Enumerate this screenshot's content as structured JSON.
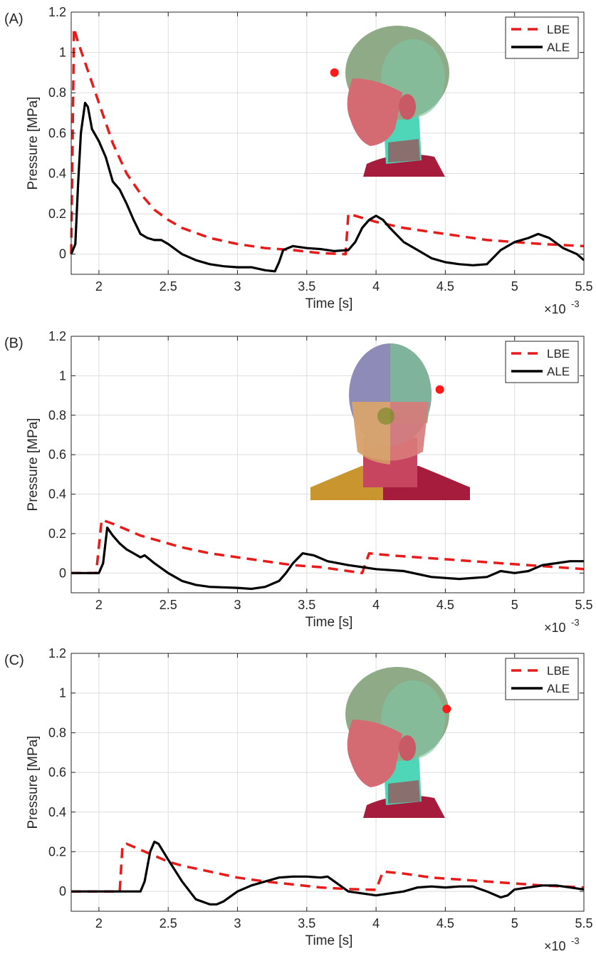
{
  "chart_data": [
    {
      "panel_label": "(A)",
      "type": "line",
      "xlabel": "Time [s]",
      "ylabel": "Pressure [MPa]",
      "x_multiplier": "×10",
      "x_multiplier_exp": "-3",
      "xlim": [
        1.8,
        5.5
      ],
      "ylim": [
        -0.1,
        1.2
      ],
      "xticks": [
        "2",
        "2.5",
        "3",
        "3.5",
        "4",
        "4.5",
        "5",
        "5.5"
      ],
      "yticks": [
        "0",
        "0.2",
        "0.4",
        "0.6",
        "0.8",
        "1",
        "1.2"
      ],
      "grid": true,
      "legend_position": "top-right",
      "head_view": "side",
      "series": [
        {
          "name": "LBE",
          "style": "dashed",
          "color": "#e81a1a",
          "points": [
            [
              1.8,
              0.0
            ],
            [
              1.82,
              1.12
            ],
            [
              1.85,
              1.05
            ],
            [
              1.9,
              0.95
            ],
            [
              2.0,
              0.75
            ],
            [
              2.1,
              0.55
            ],
            [
              2.2,
              0.4
            ],
            [
              2.3,
              0.3
            ],
            [
              2.4,
              0.22
            ],
            [
              2.5,
              0.17
            ],
            [
              2.6,
              0.13
            ],
            [
              2.8,
              0.08
            ],
            [
              3.0,
              0.05
            ],
            [
              3.2,
              0.03
            ],
            [
              3.4,
              0.02
            ],
            [
              3.6,
              0.005
            ],
            [
              3.78,
              0.0
            ],
            [
              3.8,
              0.2
            ],
            [
              4.0,
              0.16
            ],
            [
              4.2,
              0.13
            ],
            [
              4.4,
              0.11
            ],
            [
              4.6,
              0.09
            ],
            [
              4.8,
              0.07
            ],
            [
              5.0,
              0.06
            ],
            [
              5.2,
              0.05
            ],
            [
              5.5,
              0.04
            ]
          ]
        },
        {
          "name": "ALE",
          "style": "solid",
          "color": "#000000",
          "points": [
            [
              1.8,
              0.0
            ],
            [
              1.83,
              0.05
            ],
            [
              1.85,
              0.35
            ],
            [
              1.87,
              0.6
            ],
            [
              1.9,
              0.75
            ],
            [
              1.92,
              0.73
            ],
            [
              1.95,
              0.62
            ],
            [
              2.0,
              0.56
            ],
            [
              2.05,
              0.48
            ],
            [
              2.1,
              0.36
            ],
            [
              2.15,
              0.32
            ],
            [
              2.2,
              0.25
            ],
            [
              2.25,
              0.17
            ],
            [
              2.3,
              0.1
            ],
            [
              2.35,
              0.08
            ],
            [
              2.4,
              0.07
            ],
            [
              2.45,
              0.07
            ],
            [
              2.5,
              0.05
            ],
            [
              2.6,
              0.0
            ],
            [
              2.7,
              -0.03
            ],
            [
              2.8,
              -0.05
            ],
            [
              2.9,
              -0.06
            ],
            [
              3.0,
              -0.065
            ],
            [
              3.1,
              -0.065
            ],
            [
              3.2,
              -0.08
            ],
            [
              3.27,
              -0.085
            ],
            [
              3.3,
              -0.04
            ],
            [
              3.33,
              0.02
            ],
            [
              3.4,
              0.04
            ],
            [
              3.5,
              0.03
            ],
            [
              3.6,
              0.025
            ],
            [
              3.7,
              0.015
            ],
            [
              3.8,
              0.02
            ],
            [
              3.85,
              0.06
            ],
            [
              3.9,
              0.13
            ],
            [
              3.95,
              0.17
            ],
            [
              4.0,
              0.19
            ],
            [
              4.05,
              0.17
            ],
            [
              4.1,
              0.13
            ],
            [
              4.2,
              0.06
            ],
            [
              4.3,
              0.02
            ],
            [
              4.4,
              -0.02
            ],
            [
              4.5,
              -0.04
            ],
            [
              4.6,
              -0.05
            ],
            [
              4.7,
              -0.055
            ],
            [
              4.8,
              -0.05
            ],
            [
              4.9,
              0.02
            ],
            [
              5.0,
              0.06
            ],
            [
              5.1,
              0.08
            ],
            [
              5.17,
              0.1
            ],
            [
              5.25,
              0.08
            ],
            [
              5.35,
              0.03
            ],
            [
              5.45,
              0.0
            ],
            [
              5.5,
              -0.03
            ]
          ]
        }
      ]
    },
    {
      "panel_label": "(B)",
      "type": "line",
      "xlabel": "Time [s]",
      "ylabel": "Pressure [MPa]",
      "x_multiplier": "×10",
      "x_multiplier_exp": "-3",
      "xlim": [
        1.8,
        5.5
      ],
      "ylim": [
        -0.1,
        1.2
      ],
      "xticks": [
        "2",
        "2.5",
        "3",
        "3.5",
        "4",
        "4.5",
        "5",
        "5.5"
      ],
      "yticks": [
        "0",
        "0.2",
        "0.4",
        "0.6",
        "0.8",
        "1",
        "1.2"
      ],
      "grid": true,
      "legend_position": "top-right",
      "head_view": "back",
      "series": [
        {
          "name": "LBE",
          "style": "dashed",
          "color": "#e81a1a",
          "points": [
            [
              1.8,
              0.0
            ],
            [
              1.98,
              0.0
            ],
            [
              2.02,
              0.27
            ],
            [
              2.1,
              0.25
            ],
            [
              2.2,
              0.22
            ],
            [
              2.3,
              0.19
            ],
            [
              2.4,
              0.17
            ],
            [
              2.5,
              0.15
            ],
            [
              2.6,
              0.13
            ],
            [
              2.8,
              0.1
            ],
            [
              3.0,
              0.08
            ],
            [
              3.2,
              0.06
            ],
            [
              3.4,
              0.04
            ],
            [
              3.6,
              0.03
            ],
            [
              3.8,
              0.01
            ],
            [
              3.9,
              0.0
            ],
            [
              3.95,
              0.1
            ],
            [
              4.1,
              0.09
            ],
            [
              4.3,
              0.08
            ],
            [
              4.5,
              0.07
            ],
            [
              4.7,
              0.06
            ],
            [
              4.9,
              0.05
            ],
            [
              5.1,
              0.04
            ],
            [
              5.3,
              0.03
            ],
            [
              5.5,
              0.02
            ]
          ]
        },
        {
          "name": "ALE",
          "style": "solid",
          "color": "#000000",
          "points": [
            [
              1.8,
              0.0
            ],
            [
              2.0,
              0.0
            ],
            [
              2.03,
              0.05
            ],
            [
              2.06,
              0.23
            ],
            [
              2.1,
              0.19
            ],
            [
              2.15,
              0.15
            ],
            [
              2.2,
              0.12
            ],
            [
              2.25,
              0.1
            ],
            [
              2.3,
              0.08
            ],
            [
              2.33,
              0.09
            ],
            [
              2.4,
              0.05
            ],
            [
              2.5,
              0.0
            ],
            [
              2.6,
              -0.04
            ],
            [
              2.7,
              -0.06
            ],
            [
              2.8,
              -0.07
            ],
            [
              3.0,
              -0.075
            ],
            [
              3.1,
              -0.08
            ],
            [
              3.2,
              -0.07
            ],
            [
              3.3,
              -0.04
            ],
            [
              3.35,
              0.0
            ],
            [
              3.4,
              0.05
            ],
            [
              3.47,
              0.1
            ],
            [
              3.55,
              0.09
            ],
            [
              3.65,
              0.06
            ],
            [
              3.8,
              0.04
            ],
            [
              4.0,
              0.02
            ],
            [
              4.2,
              0.01
            ],
            [
              4.4,
              -0.02
            ],
            [
              4.6,
              -0.03
            ],
            [
              4.8,
              -0.02
            ],
            [
              4.9,
              0.01
            ],
            [
              5.0,
              0.0
            ],
            [
              5.1,
              0.01
            ],
            [
              5.2,
              0.04
            ],
            [
              5.3,
              0.05
            ],
            [
              5.4,
              0.06
            ],
            [
              5.5,
              0.06
            ]
          ]
        }
      ]
    },
    {
      "panel_label": "(C)",
      "type": "line",
      "xlabel": "Time [s]",
      "ylabel": "Pressure [MPa]",
      "x_multiplier": "×10",
      "x_multiplier_exp": "-3",
      "xlim": [
        1.8,
        5.5
      ],
      "ylim": [
        -0.1,
        1.2
      ],
      "xticks": [
        "2",
        "2.5",
        "3",
        "3.5",
        "4",
        "4.5",
        "5",
        "5.5"
      ],
      "yticks": [
        "0",
        "0.2",
        "0.4",
        "0.6",
        "0.8",
        "1",
        "1.2"
      ],
      "grid": true,
      "legend_position": "top-right",
      "head_view": "side",
      "series": [
        {
          "name": "LBE",
          "style": "dashed",
          "color": "#e81a1a",
          "points": [
            [
              1.8,
              0.0
            ],
            [
              2.15,
              0.0
            ],
            [
              2.17,
              0.23
            ],
            [
              2.2,
              0.24
            ],
            [
              2.3,
              0.21
            ],
            [
              2.4,
              0.18
            ],
            [
              2.5,
              0.15
            ],
            [
              2.6,
              0.13
            ],
            [
              2.8,
              0.1
            ],
            [
              3.0,
              0.07
            ],
            [
              3.2,
              0.05
            ],
            [
              3.4,
              0.035
            ],
            [
              3.6,
              0.02
            ],
            [
              3.8,
              0.012
            ],
            [
              4.0,
              0.008
            ],
            [
              4.05,
              0.1
            ],
            [
              4.2,
              0.09
            ],
            [
              4.4,
              0.07
            ],
            [
              4.6,
              0.06
            ],
            [
              4.8,
              0.05
            ],
            [
              5.0,
              0.04
            ],
            [
              5.2,
              0.03
            ],
            [
              5.5,
              0.02
            ]
          ]
        },
        {
          "name": "ALE",
          "style": "solid",
          "color": "#000000",
          "points": [
            [
              1.8,
              0.0
            ],
            [
              2.3,
              0.0
            ],
            [
              2.33,
              0.05
            ],
            [
              2.37,
              0.2
            ],
            [
              2.4,
              0.25
            ],
            [
              2.43,
              0.24
            ],
            [
              2.5,
              0.16
            ],
            [
              2.6,
              0.05
            ],
            [
              2.7,
              -0.04
            ],
            [
              2.8,
              -0.065
            ],
            [
              2.85,
              -0.065
            ],
            [
              2.9,
              -0.05
            ],
            [
              3.0,
              0.0
            ],
            [
              3.1,
              0.03
            ],
            [
              3.2,
              0.05
            ],
            [
              3.3,
              0.07
            ],
            [
              3.4,
              0.075
            ],
            [
              3.5,
              0.075
            ],
            [
              3.6,
              0.07
            ],
            [
              3.65,
              0.075
            ],
            [
              3.7,
              0.05
            ],
            [
              3.8,
              0.0
            ],
            [
              3.9,
              -0.01
            ],
            [
              4.0,
              -0.02
            ],
            [
              4.1,
              -0.01
            ],
            [
              4.2,
              0.0
            ],
            [
              4.3,
              0.02
            ],
            [
              4.4,
              0.025
            ],
            [
              4.5,
              0.02
            ],
            [
              4.6,
              0.025
            ],
            [
              4.7,
              0.025
            ],
            [
              4.8,
              0.0
            ],
            [
              4.9,
              -0.03
            ],
            [
              4.95,
              -0.02
            ],
            [
              5.0,
              0.01
            ],
            [
              5.1,
              0.02
            ],
            [
              5.2,
              0.03
            ],
            [
              5.3,
              0.03
            ],
            [
              5.4,
              0.02
            ],
            [
              5.5,
              0.01
            ]
          ]
        }
      ]
    }
  ]
}
